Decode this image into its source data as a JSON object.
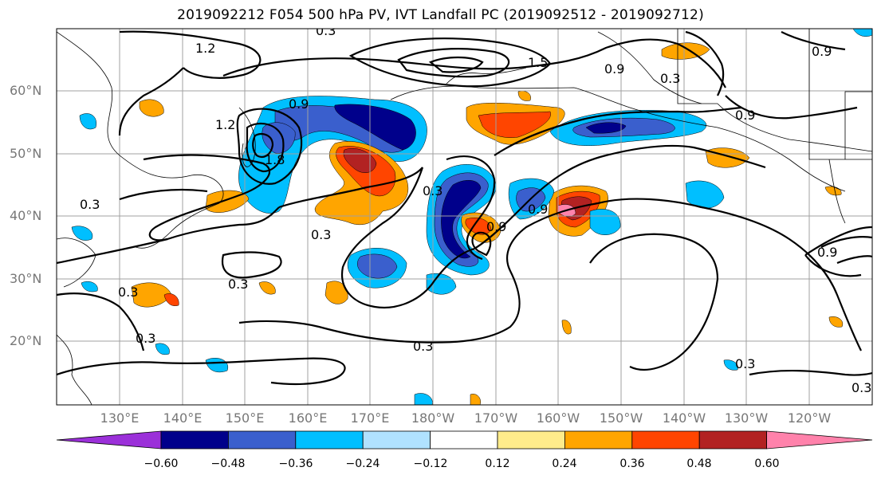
{
  "title": "2019092212 F054 500 hPa PV, IVT Landfall PC (2019092512 - 2019092712)",
  "lat_labels": [
    "60°N",
    "50°N",
    "40°N",
    "30°N",
    "20°N"
  ],
  "lon_labels": [
    "130°E",
    "140°E",
    "150°E",
    "160°E",
    "170°E",
    "180°W",
    "170°W",
    "160°W",
    "150°W",
    "140°W",
    "130°W",
    "120°W"
  ],
  "colorbar": {
    "colors": [
      "#9b30d9",
      "#00008b",
      "#3a5fcd",
      "#00bfff",
      "#b0e2ff",
      "#ffffff",
      "#ffec8b",
      "#ffa500",
      "#ff4500",
      "#b22222",
      "#ff82ab"
    ],
    "tick_labels": [
      "−0.60",
      "−0.48",
      "−0.36",
      "−0.24",
      "−0.12",
      "0.12",
      "0.24",
      "0.36",
      "0.48",
      "0.60"
    ]
  },
  "contour_labels": [
    "1.2",
    "1.5",
    "0.9",
    "1.2",
    "1.8",
    "0.9",
    "0.3",
    "0.9",
    "0.3",
    "0.9",
    "0.3",
    "0.3",
    "0.9",
    "0.3",
    "0.3",
    "0.3",
    "0.9",
    "0.3",
    "0.3",
    "0.9",
    "0.3",
    "0.3"
  ]
}
